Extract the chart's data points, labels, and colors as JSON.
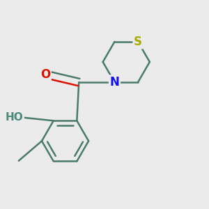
{
  "background_color": "#ebebeb",
  "bond_color": "#4a7a6a",
  "bond_width": 1.8,
  "atom_colors": {
    "O_carbonyl": "#dd1100",
    "O_hydroxyl": "#4a8a7a",
    "N": "#1111ee",
    "S": "#aaaa00",
    "C": "#4a7a6a"
  },
  "font_size_atom": 11,
  "figsize": [
    3.0,
    3.0
  ],
  "dpi": 100
}
